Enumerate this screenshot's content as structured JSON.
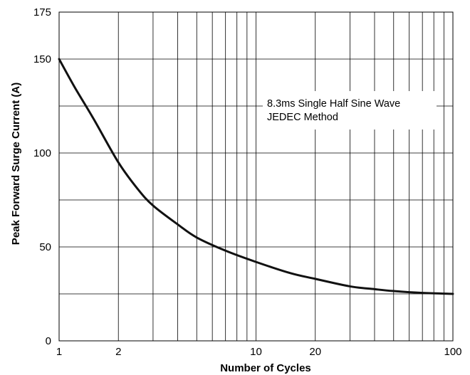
{
  "chart_data": {
    "type": "line",
    "title": "",
    "xlabel": "Number of Cycles",
    "ylabel": "Peak Forward Surge Current (A)",
    "x_scale": "log",
    "xlim": [
      1,
      100
    ],
    "ylim": [
      0,
      175
    ],
    "grid": true,
    "x_tick_labels": [
      {
        "value": 1,
        "label": "1"
      },
      {
        "value": 2,
        "label": "2"
      },
      {
        "value": 10,
        "label": "10"
      },
      {
        "value": 20,
        "label": "20"
      },
      {
        "value": 100,
        "label": "100"
      }
    ],
    "y_tick_labels": [
      {
        "value": 0,
        "label": "0"
      },
      {
        "value": 50,
        "label": "50"
      },
      {
        "value": 100,
        "label": "100"
      },
      {
        "value": 150,
        "label": "150"
      },
      {
        "value": 175,
        "label": "175"
      }
    ],
    "y_grid_values": [
      25,
      50,
      75,
      100,
      125,
      150
    ],
    "annotation": [
      "8.3ms Single Half Sine Wave",
      "JEDEC Method"
    ],
    "series": [
      {
        "color": "#111111",
        "points": [
          [
            1,
            150
          ],
          [
            1.2,
            135
          ],
          [
            1.5,
            118
          ],
          [
            2,
            95
          ],
          [
            2.5,
            81
          ],
          [
            3,
            72
          ],
          [
            4,
            62
          ],
          [
            5,
            55
          ],
          [
            7,
            48
          ],
          [
            10,
            42
          ],
          [
            15,
            36
          ],
          [
            20,
            33
          ],
          [
            30,
            29
          ],
          [
            40,
            27.5
          ],
          [
            50,
            26.5
          ],
          [
            70,
            25.5
          ],
          [
            100,
            25
          ]
        ]
      }
    ]
  }
}
